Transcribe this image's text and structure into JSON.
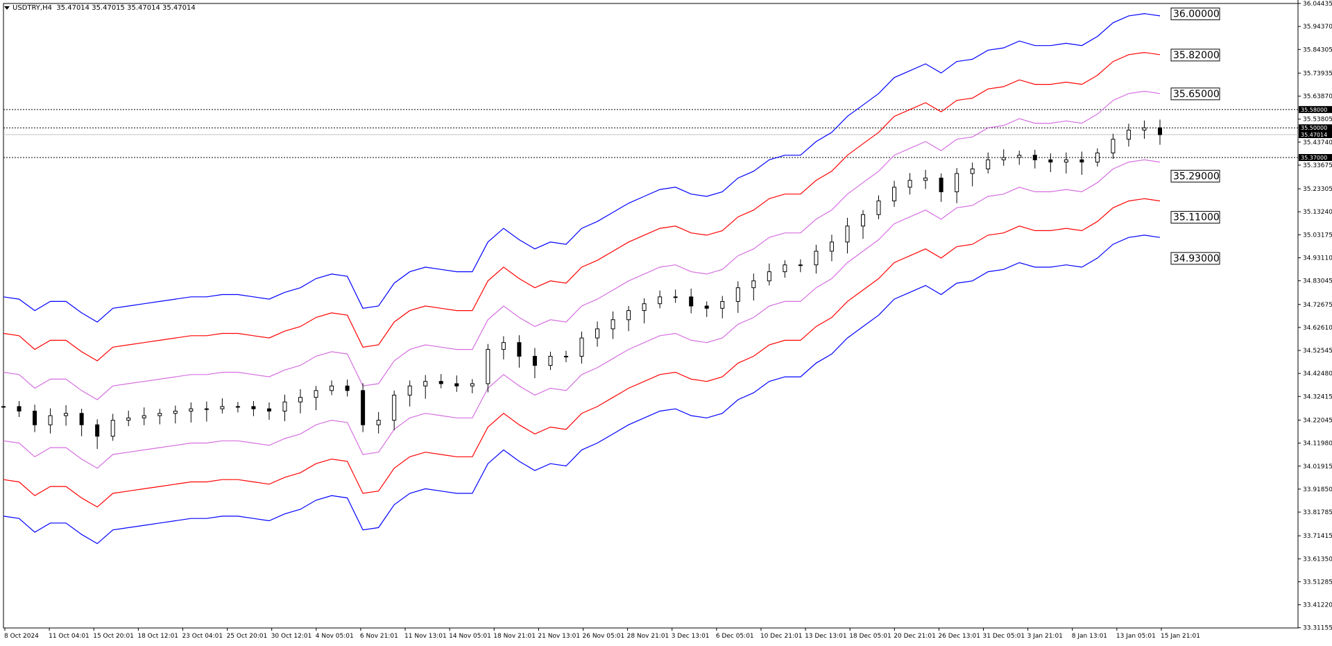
{
  "header": {
    "symbol": "USDTRY,H4",
    "ohlc": "35.47014 35.47015 35.47014 35.47014"
  },
  "colors": {
    "blue": "#0000ff",
    "red": "#ff0000",
    "violet": "#d56ee0",
    "candle": "#000000",
    "background": "#ffffff"
  },
  "chart_data": {
    "type": "line",
    "instrument": "USDTRY",
    "timeframe": "H4",
    "ylim": [
      33.3107,
      36.0443
    ],
    "price_ticks": [
      "36.04435",
      "35.94370",
      "35.84305",
      "35.73935",
      "35.63870",
      "35.53805",
      "35.43740",
      "35.33675",
      "35.23305",
      "35.13240",
      "35.03175",
      "34.93110",
      "34.83045",
      "34.72675",
      "34.62610",
      "34.52545",
      "34.42480",
      "34.32415",
      "34.22045",
      "34.11980",
      "34.01915",
      "33.91850",
      "33.81785",
      "33.71415",
      "33.61350",
      "33.51285",
      "33.41220",
      "33.31155"
    ],
    "time_ticks": [
      "8 Oct 2024",
      "11 Oct 04:01",
      "15 Oct 20:01",
      "18 Oct 12:01",
      "23 Oct 04:01",
      "25 Oct 20:01",
      "30 Oct 12:01",
      "4 Nov 05:01",
      "6 Nov 21:01",
      "11 Nov 13:01",
      "14 Nov 05:01",
      "18 Nov 21:01",
      "21 Nov 13:01",
      "26 Nov 05:01",
      "28 Nov 21:01",
      "3 Dec 13:01",
      "6 Dec 05:01",
      "10 Dec 21:01",
      "13 Dec 13:01",
      "18 Dec 05:01",
      "20 Dec 21:01",
      "26 Dec 13:01",
      "31 Dec 05:01",
      "3 Jan 21:01",
      "8 Jan 13:01",
      "13 Jan 05:01",
      "15 Jan 21:01"
    ],
    "series": [
      {
        "color": "blue",
        "role": "envelope-upper-3",
        "values": [
          34.76,
          34.75,
          34.7,
          34.74,
          34.74,
          34.69,
          34.65,
          34.71,
          34.72,
          34.73,
          34.74,
          34.75,
          34.76,
          34.76,
          34.77,
          34.77,
          34.76,
          34.75,
          34.78,
          34.8,
          34.84,
          34.86,
          34.85,
          34.71,
          34.72,
          34.82,
          34.87,
          34.89,
          34.88,
          34.87,
          34.87,
          35.0,
          35.06,
          35.01,
          34.97,
          35.0,
          34.99,
          35.06,
          35.09,
          35.13,
          35.17,
          35.2,
          35.23,
          35.24,
          35.21,
          35.2,
          35.22,
          35.28,
          35.31,
          35.36,
          35.38,
          35.38,
          35.44,
          35.48,
          35.55,
          35.6,
          35.65,
          35.72,
          35.75,
          35.78,
          35.74,
          35.79,
          35.8,
          35.84,
          35.85,
          35.88,
          35.86,
          35.86,
          35.87,
          35.86,
          35.9,
          35.96,
          35.99,
          36.0,
          35.99
        ]
      },
      {
        "color": "red",
        "role": "envelope-upper-2",
        "values": [
          34.6,
          34.59,
          34.53,
          34.57,
          34.57,
          34.52,
          34.48,
          34.54,
          34.55,
          34.56,
          34.57,
          34.58,
          34.59,
          34.59,
          34.6,
          34.6,
          34.59,
          34.58,
          34.61,
          34.63,
          34.67,
          34.69,
          34.68,
          34.54,
          34.55,
          34.65,
          34.7,
          34.72,
          34.71,
          34.7,
          34.7,
          34.83,
          34.89,
          34.84,
          34.8,
          34.83,
          34.82,
          34.89,
          34.92,
          34.96,
          35.0,
          35.03,
          35.06,
          35.07,
          35.04,
          35.03,
          35.05,
          35.11,
          35.14,
          35.19,
          35.21,
          35.21,
          35.27,
          35.31,
          35.38,
          35.43,
          35.48,
          35.55,
          35.58,
          35.61,
          35.57,
          35.62,
          35.63,
          35.67,
          35.68,
          35.71,
          35.69,
          35.69,
          35.7,
          35.69,
          35.73,
          35.79,
          35.82,
          35.83,
          35.82
        ]
      },
      {
        "color": "violet",
        "role": "envelope-upper-1",
        "values": [
          34.43,
          34.42,
          34.36,
          34.4,
          34.4,
          34.35,
          34.31,
          34.37,
          34.38,
          34.39,
          34.4,
          34.41,
          34.42,
          34.42,
          34.43,
          34.43,
          34.42,
          34.41,
          34.44,
          34.46,
          34.5,
          34.52,
          34.51,
          34.37,
          34.38,
          34.48,
          34.53,
          34.55,
          34.54,
          34.53,
          34.53,
          34.66,
          34.72,
          34.67,
          34.63,
          34.66,
          34.65,
          34.72,
          34.75,
          34.79,
          34.83,
          34.86,
          34.89,
          34.9,
          34.87,
          34.86,
          34.88,
          34.94,
          34.97,
          35.02,
          35.04,
          35.04,
          35.1,
          35.14,
          35.21,
          35.26,
          35.31,
          35.38,
          35.41,
          35.44,
          35.4,
          35.45,
          35.46,
          35.5,
          35.51,
          35.54,
          35.52,
          35.52,
          35.53,
          35.52,
          35.56,
          35.62,
          35.65,
          35.66,
          35.65
        ]
      },
      {
        "color": "violet",
        "role": "envelope-lower-1",
        "values": [
          34.13,
          34.12,
          34.06,
          34.1,
          34.1,
          34.05,
          34.01,
          34.07,
          34.08,
          34.09,
          34.1,
          34.11,
          34.12,
          34.12,
          34.13,
          34.13,
          34.12,
          34.11,
          34.14,
          34.16,
          34.2,
          34.22,
          34.21,
          34.07,
          34.08,
          34.18,
          34.23,
          34.25,
          34.24,
          34.23,
          34.23,
          34.36,
          34.42,
          34.37,
          34.33,
          34.36,
          34.35,
          34.42,
          34.45,
          34.49,
          34.53,
          34.56,
          34.59,
          34.6,
          34.57,
          34.56,
          34.58,
          34.64,
          34.67,
          34.72,
          34.74,
          34.74,
          34.8,
          34.84,
          34.91,
          34.96,
          35.01,
          35.08,
          35.11,
          35.14,
          35.1,
          35.15,
          35.16,
          35.2,
          35.21,
          35.24,
          35.22,
          35.22,
          35.23,
          35.22,
          35.26,
          35.32,
          35.35,
          35.36,
          35.35
        ]
      },
      {
        "color": "red",
        "role": "envelope-lower-2",
        "values": [
          33.96,
          33.95,
          33.89,
          33.93,
          33.93,
          33.88,
          33.84,
          33.9,
          33.91,
          33.92,
          33.93,
          33.94,
          33.95,
          33.95,
          33.96,
          33.96,
          33.95,
          33.94,
          33.97,
          33.99,
          34.03,
          34.05,
          34.04,
          33.9,
          33.91,
          34.01,
          34.06,
          34.08,
          34.07,
          34.06,
          34.06,
          34.19,
          34.25,
          34.2,
          34.16,
          34.19,
          34.18,
          34.25,
          34.28,
          34.32,
          34.36,
          34.39,
          34.42,
          34.43,
          34.4,
          34.39,
          34.41,
          34.47,
          34.5,
          34.55,
          34.57,
          34.57,
          34.63,
          34.67,
          34.74,
          34.79,
          34.84,
          34.91,
          34.94,
          34.97,
          34.93,
          34.98,
          34.99,
          35.03,
          35.04,
          35.07,
          35.05,
          35.05,
          35.06,
          35.05,
          35.09,
          35.15,
          35.18,
          35.19,
          35.18
        ]
      },
      {
        "color": "blue",
        "role": "envelope-lower-3",
        "values": [
          33.8,
          33.79,
          33.73,
          33.77,
          33.77,
          33.72,
          33.68,
          33.74,
          33.75,
          33.76,
          33.77,
          33.78,
          33.79,
          33.79,
          33.8,
          33.8,
          33.79,
          33.78,
          33.81,
          33.83,
          33.87,
          33.89,
          33.88,
          33.74,
          33.75,
          33.85,
          33.9,
          33.92,
          33.91,
          33.9,
          33.9,
          34.03,
          34.09,
          34.04,
          34.0,
          34.03,
          34.02,
          34.09,
          34.12,
          34.16,
          34.2,
          34.23,
          34.26,
          34.27,
          34.24,
          34.23,
          34.25,
          34.31,
          34.34,
          34.39,
          34.41,
          34.41,
          34.47,
          34.51,
          34.58,
          34.63,
          34.68,
          34.75,
          34.78,
          34.81,
          34.77,
          34.82,
          34.83,
          34.87,
          34.88,
          34.91,
          34.89,
          34.89,
          34.9,
          34.89,
          34.93,
          34.99,
          35.02,
          35.03,
          35.02
        ]
      }
    ],
    "close_values": [
      34.28,
      34.26,
      34.2,
      34.24,
      34.25,
      34.2,
      34.15,
      34.22,
      34.23,
      34.24,
      34.25,
      34.26,
      34.27,
      34.27,
      34.28,
      34.28,
      34.27,
      34.26,
      34.3,
      34.32,
      34.35,
      34.37,
      34.35,
      34.2,
      34.22,
      34.33,
      34.37,
      34.39,
      34.38,
      34.37,
      34.38,
      34.53,
      34.56,
      34.5,
      34.46,
      34.5,
      34.5,
      34.58,
      34.62,
      34.66,
      34.7,
      34.73,
      34.76,
      34.76,
      34.72,
      34.71,
      34.74,
      34.8,
      34.83,
      34.87,
      34.9,
      34.9,
      34.96,
      35.0,
      35.07,
      35.12,
      35.18,
      35.24,
      35.27,
      35.28,
      35.22,
      35.3,
      35.32,
      35.36,
      35.37,
      35.38,
      35.36,
      35.35,
      35.36,
      35.35,
      35.39,
      35.45,
      35.49,
      35.5,
      35.47
    ],
    "level_labels": [
      "36.00000",
      "35.82000",
      "35.65000",
      "35.29000",
      "35.11000",
      "34.93000"
    ],
    "horizontal_lines": [
      "35.58000",
      "35.50000",
      "35.37000"
    ],
    "current_price": "35.47014",
    "grid": false
  }
}
